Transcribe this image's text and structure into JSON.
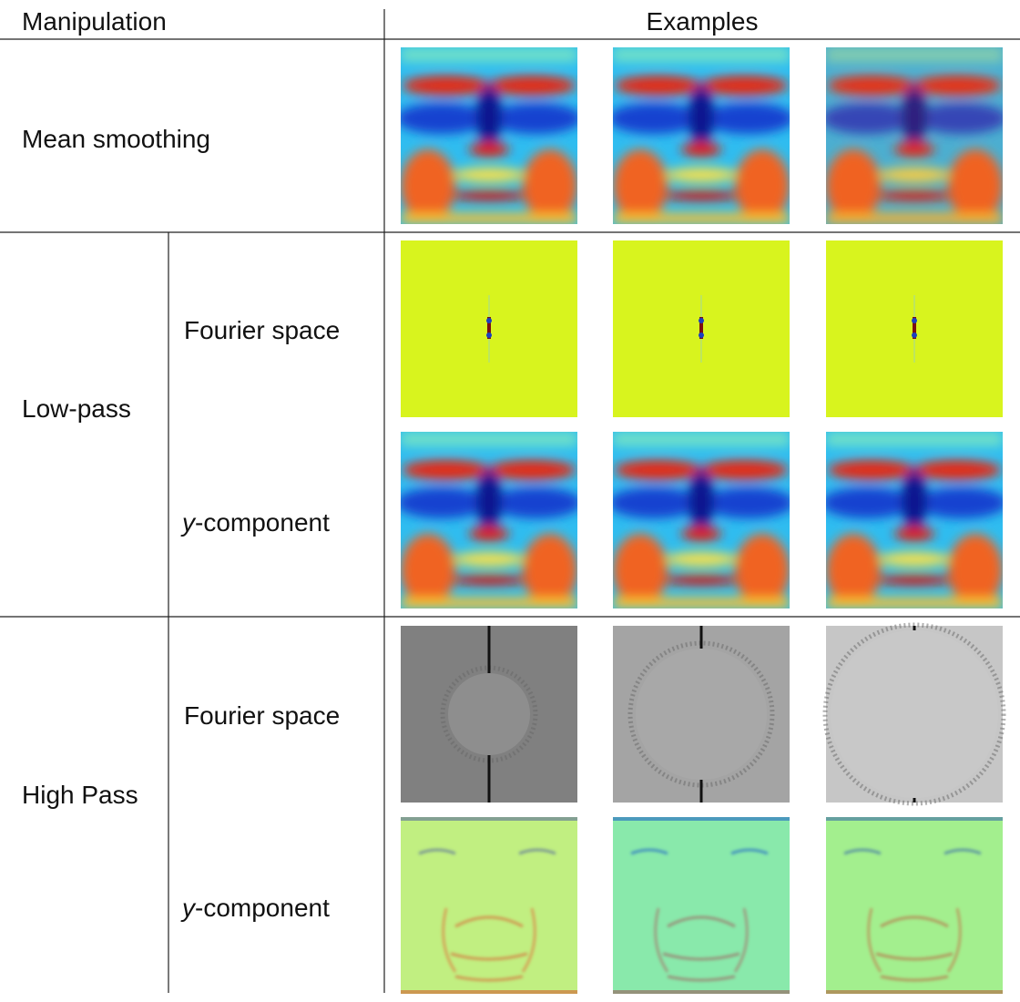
{
  "table": {
    "header": [
      "Manipulation",
      "Examples"
    ],
    "rows": [
      {
        "label": "Mean smoothing"
      },
      {
        "label": "Low-pass",
        "subrows": [
          "Fourier space",
          "y-component"
        ]
      },
      {
        "label": "High Pass",
        "subrows": [
          "Fourier space",
          "y-component"
        ]
      }
    ]
  }
}
